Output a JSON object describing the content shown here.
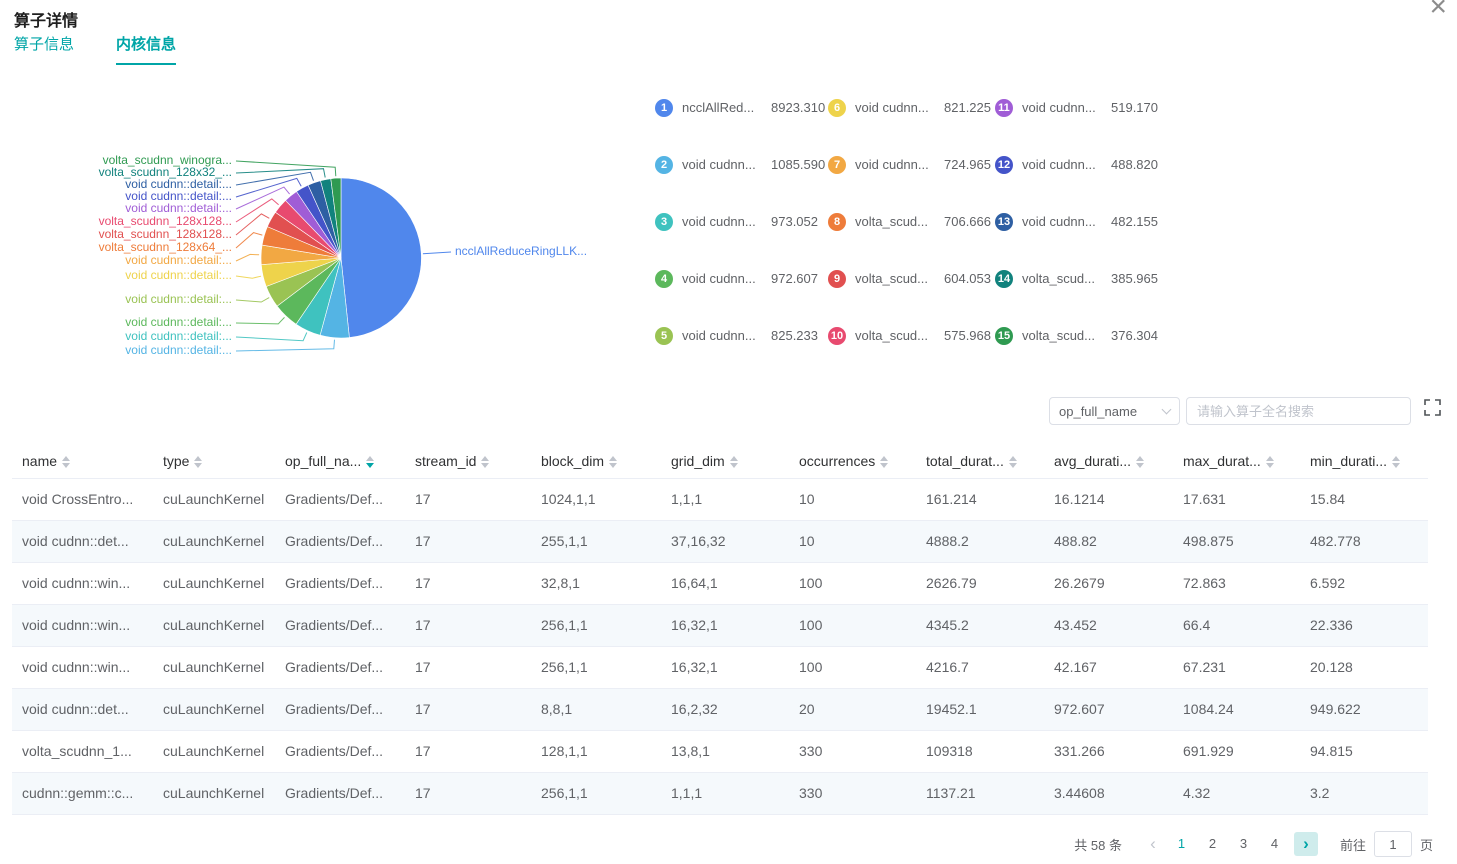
{
  "accent_color": "#00a5a7",
  "dialog": {
    "title": "算子详情",
    "close_icon": "×"
  },
  "tabs": [
    {
      "label": "算子信息",
      "active": false
    },
    {
      "label": "内核信息",
      "active": true
    }
  ],
  "chart_data": {
    "type": "pie",
    "legend_position": "right",
    "items": [
      {
        "rank": "1",
        "name": "ncclAllRed...",
        "value": "8923.310",
        "color": "#5087ec"
      },
      {
        "rank": "2",
        "name": "void cudnn...",
        "value": "1085.590",
        "color": "#54b4e4"
      },
      {
        "rank": "3",
        "name": "void cudnn...",
        "value": "973.052",
        "color": "#3fc2bf"
      },
      {
        "rank": "4",
        "name": "void cudnn...",
        "value": "972.607",
        "color": "#5cb85c"
      },
      {
        "rank": "5",
        "name": "void cudnn...",
        "value": "825.233",
        "color": "#9ac353"
      },
      {
        "rank": "6",
        "name": "void cudnn...",
        "value": "821.225",
        "color": "#eed34b"
      },
      {
        "rank": "7",
        "name": "void cudnn...",
        "value": "724.965",
        "color": "#f2a843"
      },
      {
        "rank": "8",
        "name": "volta_scud...",
        "value": "706.666",
        "color": "#ee7c3a"
      },
      {
        "rank": "9",
        "name": "volta_scud...",
        "value": "604.053",
        "color": "#e15050"
      },
      {
        "rank": "10",
        "name": "volta_scud...",
        "value": "575.968",
        "color": "#e84a6f"
      },
      {
        "rank": "11",
        "name": "void cudnn...",
        "value": "519.170",
        "color": "#a05dd6"
      },
      {
        "rank": "12",
        "name": "void cudnn...",
        "value": "488.820",
        "color": "#4454c9"
      },
      {
        "rank": "13",
        "name": "void cudnn...",
        "value": "482.155",
        "color": "#2e5fa3"
      },
      {
        "rank": "14",
        "name": "volta_scud...",
        "value": "385.965",
        "color": "#11827d"
      },
      {
        "rank": "15",
        "name": "volta_scud...",
        "value": "376.304",
        "color": "#2f9a51"
      }
    ],
    "outside_labels_left": [
      {
        "text": "volta_scudnn_winogra...",
        "slice": 15
      },
      {
        "text": "volta_scudnn_128x32_...",
        "slice": 14
      },
      {
        "text": "void cudnn::detail:...",
        "slice": 13
      },
      {
        "text": "void cudnn::detail:...",
        "slice": 12
      },
      {
        "text": "void cudnn::detail:...",
        "slice": 11
      },
      {
        "text": "volta_scudnn_128x128...",
        "slice": 10
      },
      {
        "text": "volta_scudnn_128x128...",
        "slice": 9
      },
      {
        "text": "volta_scudnn_128x64_...",
        "slice": 8
      },
      {
        "text": "void cudnn::detail:...",
        "slice": 7
      },
      {
        "text": "void cudnn::detail:...",
        "slice": 6
      },
      {
        "text": "void cudnn::detail:...",
        "slice": 5
      },
      {
        "text": "void cudnn::detail:...",
        "slice": 4
      },
      {
        "text": "void cudnn::detail:...",
        "slice": 3
      },
      {
        "text": "void cudnn::detail:...",
        "slice": 2
      }
    ],
    "outside_label_right": {
      "text": "ncclAllReduceRingLLK...",
      "slice": 1
    }
  },
  "toolbar": {
    "column_select": {
      "value": "op_full_name"
    },
    "search": {
      "placeholder": "请输入算子全名搜索"
    }
  },
  "table": {
    "columns": [
      {
        "key": "name",
        "label": "name"
      },
      {
        "key": "type",
        "label": "type"
      },
      {
        "key": "op_full_name",
        "label": "op_full_na...",
        "sort_active": "desc"
      },
      {
        "key": "stream_id",
        "label": "stream_id"
      },
      {
        "key": "block_dim",
        "label": "block_dim"
      },
      {
        "key": "grid_dim",
        "label": "grid_dim"
      },
      {
        "key": "occurrences",
        "label": "occurrences"
      },
      {
        "key": "total_duration",
        "label": "total_durat..."
      },
      {
        "key": "avg_duration",
        "label": "avg_durati..."
      },
      {
        "key": "max_duration",
        "label": "max_durat..."
      },
      {
        "key": "min_duration",
        "label": "min_durati..."
      }
    ],
    "rows": [
      [
        "void CrossEntro...",
        "cuLaunchKernel",
        "Gradients/Def...",
        "17",
        "1024,1,1",
        "1,1,1",
        "10",
        "161.214",
        "16.1214",
        "17.631",
        "15.84"
      ],
      [
        "void cudnn::det...",
        "cuLaunchKernel",
        "Gradients/Def...",
        "17",
        "255,1,1",
        "37,16,32",
        "10",
        "4888.2",
        "488.82",
        "498.875",
        "482.778"
      ],
      [
        "void cudnn::win...",
        "cuLaunchKernel",
        "Gradients/Def...",
        "17",
        "32,8,1",
        "16,64,1",
        "100",
        "2626.79",
        "26.2679",
        "72.863",
        "6.592"
      ],
      [
        "void cudnn::win...",
        "cuLaunchKernel",
        "Gradients/Def...",
        "17",
        "256,1,1",
        "16,32,1",
        "100",
        "4345.2",
        "43.452",
        "66.4",
        "22.336"
      ],
      [
        "void cudnn::win...",
        "cuLaunchKernel",
        "Gradients/Def...",
        "17",
        "256,1,1",
        "16,32,1",
        "100",
        "4216.7",
        "42.167",
        "67.231",
        "20.128"
      ],
      [
        "void cudnn::det...",
        "cuLaunchKernel",
        "Gradients/Def...",
        "17",
        "8,8,1",
        "16,2,32",
        "20",
        "19452.1",
        "972.607",
        "1084.24",
        "949.622"
      ],
      [
        "volta_scudnn_1...",
        "cuLaunchKernel",
        "Gradients/Def...",
        "17",
        "128,1,1",
        "13,8,1",
        "330",
        "109318",
        "331.266",
        "691.929",
        "94.815"
      ],
      [
        "cudnn::gemm::c...",
        "cuLaunchKernel",
        "Gradients/Def...",
        "17",
        "256,1,1",
        "1,1,1",
        "330",
        "1137.21",
        "3.44608",
        "4.32",
        "3.2"
      ]
    ]
  },
  "pagination": {
    "total_text": "共 58 条",
    "prev_icon": "‹",
    "next_icon": "›",
    "pages": [
      "1",
      "2",
      "3",
      "4"
    ],
    "active_page": "1",
    "goto_label": "前往",
    "goto_value": "1",
    "page_unit": "页"
  }
}
